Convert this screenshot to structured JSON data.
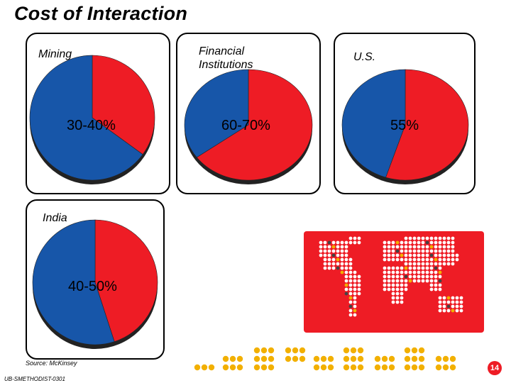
{
  "title": "Cost of Interaction",
  "source": "Source: McKinsey",
  "footer_code": "UB-SMETHODIST-0301",
  "page_number": "14",
  "colors": {
    "red": "#ee1c25",
    "blue": "#1756a9",
    "gold": "#f2b000"
  },
  "chart_data": [
    {
      "type": "pie",
      "title": "Mining",
      "label": "30-40%",
      "slices": [
        {
          "color": "red",
          "value": 35
        },
        {
          "color": "blue",
          "value": 65
        }
      ]
    },
    {
      "type": "pie",
      "title": "Financial Institutions",
      "label": "60-70%",
      "slices": [
        {
          "color": "red",
          "value": 65
        },
        {
          "color": "blue",
          "value": 35
        }
      ]
    },
    {
      "type": "pie",
      "title": "U.S.",
      "label": "55%",
      "slices": [
        {
          "color": "red",
          "value": 55
        },
        {
          "color": "blue",
          "value": 45
        }
      ]
    },
    {
      "type": "pie",
      "title": "India",
      "label": "40-50%",
      "slices": [
        {
          "color": "red",
          "value": 45
        },
        {
          "color": "blue",
          "value": 55
        }
      ]
    }
  ]
}
